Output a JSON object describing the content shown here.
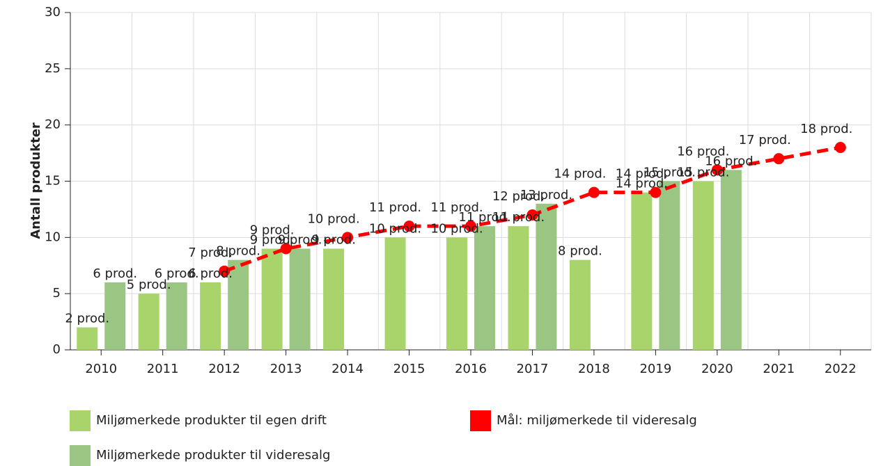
{
  "chart_data": {
    "type": "bar",
    "y_label": "Antall produkter",
    "categories": [
      "2010",
      "2011",
      "2012",
      "2013",
      "2014",
      "2015",
      "2016",
      "2017",
      "2018",
      "2019",
      "2020",
      "2021",
      "2022"
    ],
    "series": [
      {
        "name": "Miljømerkede produkter til egen drift",
        "type": "bar",
        "color": "#a9d46b",
        "values": [
          2,
          5,
          6,
          9,
          9,
          10,
          10,
          11,
          8,
          14,
          15,
          null,
          null
        ],
        "value_labels": [
          "2 prod.",
          "5 prod.",
          "6 prod.",
          "9 prod.",
          "9 prod.",
          "10 prod.",
          "10 prod.",
          "11 prod.",
          "8 prod.",
          "14 prod.",
          "15 prod.",
          null,
          null
        ]
      },
      {
        "name": "Miljømerkede produkter til videresalg",
        "type": "bar",
        "color": "#9bc583",
        "values": [
          6,
          6,
          8,
          9,
          null,
          null,
          11,
          13,
          null,
          15,
          16,
          null,
          null
        ],
        "value_labels": [
          "6 prod.",
          "6 prod.",
          "8 prod.",
          "9 prod.",
          null,
          null,
          "11 prod.",
          "13 prod.",
          null,
          "15 prod.",
          "16 prod.",
          null,
          null
        ]
      },
      {
        "name": "Mål: miljømerkede til videresalg",
        "type": "line",
        "color": "#ff0000",
        "values": [
          null,
          null,
          7,
          9,
          10,
          11,
          11,
          12,
          14,
          14,
          16,
          17,
          18
        ],
        "value_labels": [
          null,
          null,
          "7 prod.",
          "9 prod.",
          "10 prod.",
          "11 prod.",
          "11 prod.",
          "12 prod.",
          "14 prod.",
          "14 prod.",
          "16 prod.",
          "17 prod.",
          "18 prod."
        ]
      }
    ],
    "ylim": [
      0,
      30
    ],
    "yticks": [
      0,
      5,
      10,
      15,
      20,
      25,
      30
    ],
    "grid": true
  }
}
